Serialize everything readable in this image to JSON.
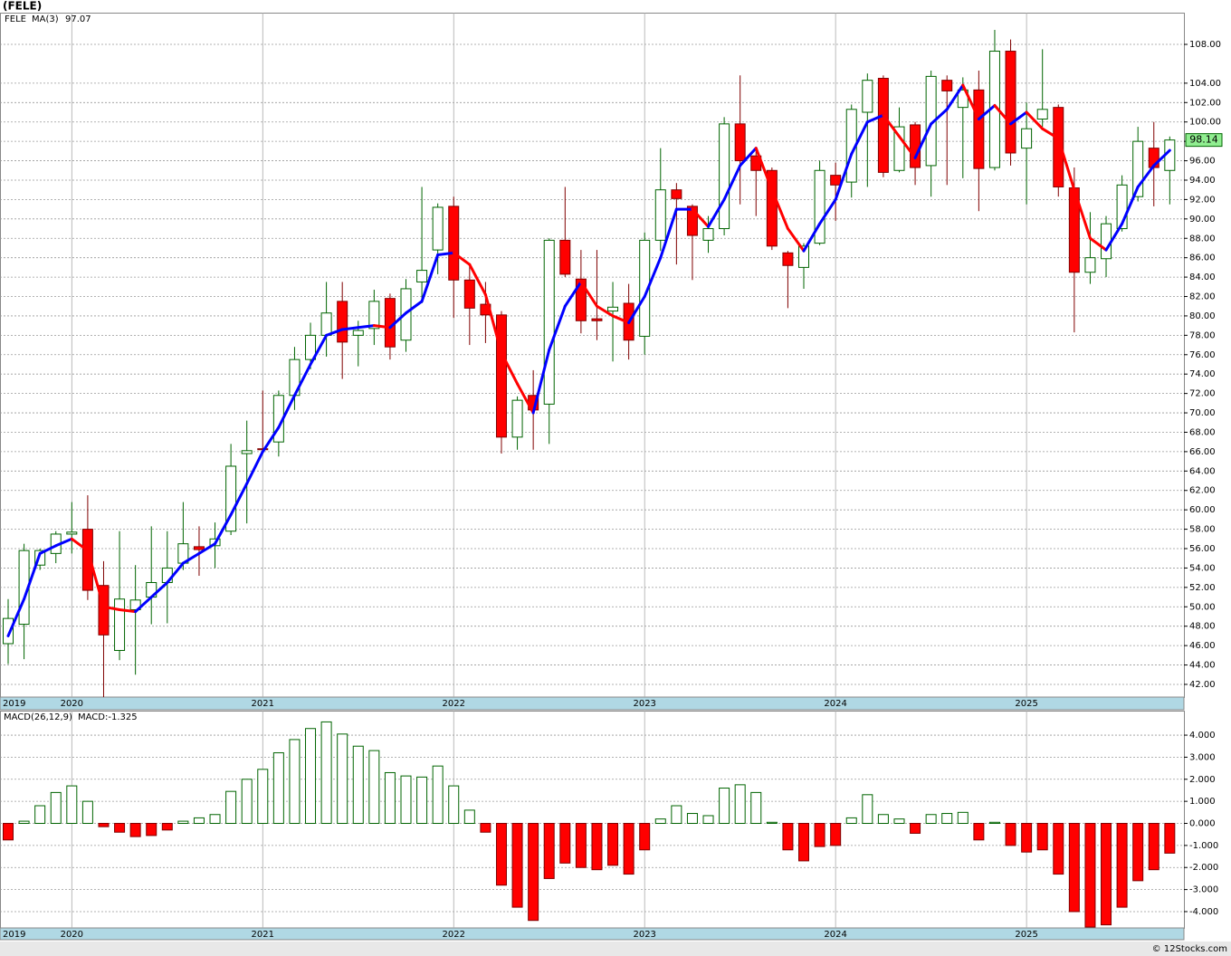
{
  "chart_data": [
    {
      "type": "candlestick",
      "title": "(FELE)",
      "symbol": "FELE",
      "ma_name": "MA(3)",
      "x_start_label": "2019",
      "categories": [
        null,
        null,
        null,
        null,
        "2020",
        null,
        null,
        null,
        null,
        null,
        null,
        null,
        null,
        null,
        null,
        null,
        "2021",
        null,
        null,
        null,
        null,
        null,
        null,
        null,
        null,
        null,
        null,
        null,
        "2022",
        null,
        null,
        null,
        null,
        null,
        null,
        null,
        null,
        null,
        null,
        null,
        "2023",
        null,
        null,
        null,
        null,
        null,
        null,
        null,
        null,
        null,
        null,
        null,
        "2024",
        null,
        null,
        null,
        null,
        null,
        null,
        null,
        null,
        null,
        null,
        null,
        "2025",
        null,
        null,
        null,
        null,
        null,
        null,
        null,
        null,
        null
      ],
      "open": [
        46.2,
        48.2,
        54.3,
        55.5,
        57.5,
        58,
        52.2,
        45.5,
        49.7,
        51,
        52.5,
        54.5,
        56.2,
        56.3,
        57.8,
        65.8,
        66.3,
        67,
        71.8,
        75.5,
        78,
        81.5,
        78,
        78.7,
        81.8,
        77.5,
        83.5,
        86.8,
        91.3,
        83.7,
        81.2,
        80.1,
        67.5,
        71.8,
        70.9,
        87.8,
        83.8,
        79.7,
        80.5,
        81.3,
        77.9,
        87.8,
        93,
        91.3,
        87.8,
        89,
        99.8,
        96.5,
        95,
        86.5,
        85,
        87.5,
        94.5,
        93.8,
        101,
        104.5,
        95,
        99.7,
        95.5,
        104.3,
        101.5,
        103.3,
        95.3,
        107.3,
        97.3,
        100.3,
        101.5,
        93.2,
        84.5,
        85.9,
        89,
        92.3,
        97.3,
        95
      ],
      "high": [
        50.8,
        56.5,
        56,
        57.8,
        60.8,
        61.5,
        54.7,
        57.8,
        54.3,
        58.3,
        57.8,
        60.8,
        58.3,
        58.7,
        66.8,
        69.2,
        72.3,
        72.3,
        76.8,
        79.3,
        83.5,
        83.5,
        79.5,
        82.7,
        82.3,
        83.8,
        93.3,
        91.6,
        92.3,
        85.3,
        83.5,
        80.5,
        71.7,
        74.4,
        88,
        93.3,
        86.8,
        86.8,
        83.5,
        83.3,
        88.6,
        97.3,
        93.7,
        91.5,
        90.3,
        100.5,
        104.8,
        97.2,
        95.3,
        86.7,
        87.5,
        96,
        95.8,
        101.8,
        105,
        104.8,
        101.5,
        100,
        105.3,
        104.8,
        104.6,
        105.3,
        109.5,
        108.5,
        102,
        107.5,
        101.8,
        95.3,
        90.7,
        90.3,
        94.5,
        99.5,
        100,
        98.5
      ],
      "low": [
        44.1,
        44.6,
        53.8,
        54.5,
        55.5,
        50.7,
        40.5,
        44.5,
        43,
        48.2,
        48.3,
        53.8,
        53.2,
        54,
        57.4,
        58.6,
        65.8,
        65.5,
        70.3,
        74.5,
        75.8,
        73.5,
        74.8,
        77,
        75.5,
        76.3,
        81.3,
        84.3,
        79.8,
        77,
        77.2,
        65.8,
        66.2,
        66.2,
        66.8,
        84,
        78.2,
        77.5,
        75.3,
        75.5,
        76,
        86.7,
        85.3,
        83.7,
        86.5,
        88.3,
        91.5,
        90.3,
        86.8,
        80.8,
        82.8,
        87.3,
        89.8,
        92.2,
        93.3,
        94.3,
        94.8,
        93.5,
        92.3,
        93.5,
        94.2,
        90.8,
        95,
        95.5,
        91.5,
        99.5,
        92.3,
        78.3,
        83.3,
        84,
        88.7,
        91.8,
        91.3,
        91.5
      ],
      "close": [
        48.8,
        55.8,
        55.8,
        57.5,
        57.7,
        51.7,
        47.1,
        50.8,
        50.7,
        52.5,
        54,
        56.5,
        55.9,
        57,
        64.5,
        66.1,
        66.2,
        71.8,
        75.5,
        78,
        80.3,
        77.3,
        78.5,
        81.5,
        76.8,
        82.8,
        84.7,
        91.2,
        83.7,
        80.8,
        80.1,
        67.5,
        71.3,
        70.3,
        87.8,
        84.3,
        79.5,
        79.5,
        80.9,
        77.5,
        87.8,
        93,
        92.1,
        88.3,
        89,
        99.8,
        96,
        95,
        87.2,
        85.2,
        87.2,
        95,
        93.5,
        101.3,
        104.3,
        94.8,
        99.5,
        95.3,
        104.7,
        103.2,
        103.3,
        95.2,
        107.3,
        96.8,
        99.3,
        101.3,
        93.3,
        84.5,
        86,
        89.5,
        93.5,
        98,
        95.3,
        98.14
      ],
      "ma_values": [
        47,
        50.8,
        55.5,
        56.3,
        57,
        55.8,
        50,
        49.7,
        49.5,
        51,
        52.5,
        54.5,
        55.5,
        56.5,
        59.5,
        62.7,
        66,
        68.5,
        71.8,
        75,
        78,
        78.6,
        78.8,
        79,
        78.8,
        80.3,
        81.5,
        86.3,
        86.5,
        85.3,
        82.2,
        76.2,
        73,
        70,
        76.5,
        81,
        83.5,
        81,
        80,
        79.3,
        82,
        86,
        91,
        91,
        89.2,
        92,
        95.5,
        97.3,
        93,
        89,
        86.7,
        89.5,
        92,
        96.7,
        100,
        100.7,
        98.5,
        96.3,
        99.8,
        101.3,
        103.8,
        100.3,
        101.7,
        99.8,
        101,
        99.3,
        98.3,
        93,
        88,
        86.8,
        89.5,
        93.3,
        95.5,
        97.07
      ],
      "up_color": "#006400",
      "down_color": "#ff0000",
      "ma_up_color": "#0000ff",
      "ma_down_color": "#ff0000",
      "ylim": [
        40.69,
        111.27
      ],
      "yticks": [
        {
          "value": 42,
          "label": "42.00"
        },
        {
          "value": 44,
          "label": "44.00"
        },
        {
          "value": 46,
          "label": "46.00"
        },
        {
          "value": 48,
          "label": "48.00"
        },
        {
          "value": 50,
          "label": "50.00"
        },
        {
          "value": 52,
          "label": "52.00"
        },
        {
          "value": 54,
          "label": "54.00"
        },
        {
          "value": 56,
          "label": "56.00"
        },
        {
          "value": 58,
          "label": "58.00"
        },
        {
          "value": 60,
          "label": "60.00"
        },
        {
          "value": 62,
          "label": "62.00"
        },
        {
          "value": 64,
          "label": "64.00"
        },
        {
          "value": 66,
          "label": "66.00"
        },
        {
          "value": 68,
          "label": "68.00"
        },
        {
          "value": 70,
          "label": "70.00"
        },
        {
          "value": 72,
          "label": "72.00"
        },
        {
          "value": 74,
          "label": "74.00"
        },
        {
          "value": 76,
          "label": "76.00"
        },
        {
          "value": 78,
          "label": "78.00"
        },
        {
          "value": 80,
          "label": "80.00"
        },
        {
          "value": 82,
          "label": "82.00"
        },
        {
          "value": 84,
          "label": "84.00"
        },
        {
          "value": 86,
          "label": "86.00"
        },
        {
          "value": 88,
          "label": "88.00"
        },
        {
          "value": 90,
          "label": "90.00"
        },
        {
          "value": 92,
          "label": "92.00"
        },
        {
          "value": 94,
          "label": "94.00"
        },
        {
          "value": 96,
          "label": "96.00"
        },
        {
          "value": 98,
          "label": "98.00"
        },
        {
          "value": 100,
          "label": "100.00"
        },
        {
          "value": 102,
          "label": "102.00"
        },
        {
          "value": 104,
          "label": "104.00"
        },
        {
          "value": 108,
          "label": "108.00"
        }
      ],
      "grid": true
    },
    {
      "type": "bar",
      "title": "MACD(26,12,9)",
      "value_label": "MACD:-1.325",
      "x_start_label": "2019",
      "categories": [
        null,
        null,
        null,
        null,
        "2020",
        null,
        null,
        null,
        null,
        null,
        null,
        null,
        null,
        null,
        null,
        null,
        "2021",
        null,
        null,
        null,
        null,
        null,
        null,
        null,
        null,
        null,
        null,
        null,
        "2022",
        null,
        null,
        null,
        null,
        null,
        null,
        null,
        null,
        null,
        null,
        null,
        "2023",
        null,
        null,
        null,
        null,
        null,
        null,
        null,
        null,
        null,
        null,
        null,
        "2024",
        null,
        null,
        null,
        null,
        null,
        null,
        null,
        null,
        null,
        null,
        null,
        "2025",
        null,
        null,
        null,
        null,
        null,
        null,
        null,
        null,
        null
      ],
      "values": [
        -0.75,
        0.1,
        0.8,
        1.4,
        1.7,
        1.0,
        -0.15,
        -0.4,
        -0.6,
        -0.55,
        -0.3,
        0.1,
        0.25,
        0.4,
        1.45,
        2.0,
        2.45,
        3.2,
        3.8,
        4.3,
        4.6,
        4.05,
        3.5,
        3.3,
        2.3,
        2.15,
        2.1,
        2.6,
        1.7,
        0.6,
        -0.4,
        -2.8,
        -3.8,
        -4.4,
        -2.5,
        -1.8,
        -2.0,
        -2.1,
        -1.9,
        -2.3,
        -1.2,
        0.2,
        0.8,
        0.45,
        0.35,
        1.6,
        1.75,
        1.4,
        0.05,
        -1.2,
        -1.7,
        -1.05,
        -1.0,
        0.25,
        1.3,
        0.4,
        0.2,
        -0.45,
        0.4,
        0.45,
        0.5,
        -0.75,
        0.05,
        -1.0,
        -1.3,
        -1.2,
        -2.3,
        -4.0,
        -4.7,
        -4.6,
        -3.8,
        -2.6,
        -2.1,
        -1.35
      ],
      "up_color": "#006400",
      "down_color": "#ff0000",
      "ylim": [
        -4.74,
        5.11
      ],
      "yticks": [
        {
          "value": -4,
          "label": "-4.000"
        },
        {
          "value": -3,
          "label": "-3.000"
        },
        {
          "value": -2,
          "label": "-2.000"
        },
        {
          "value": -1,
          "label": "-1.000"
        },
        {
          "value": 0,
          "label": "0.000"
        },
        {
          "value": 1,
          "label": "1.000"
        },
        {
          "value": 2,
          "label": "2.000"
        },
        {
          "value": 3,
          "label": "3.000"
        },
        {
          "value": 4,
          "label": "4.000"
        }
      ],
      "grid": true
    }
  ],
  "footer": "© 12Stocks.com"
}
